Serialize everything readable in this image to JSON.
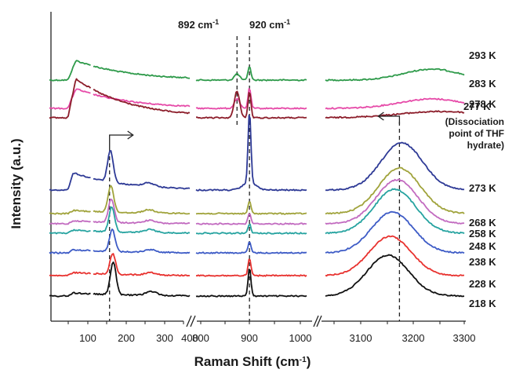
{
  "chart_data": {
    "type": "line",
    "title": "",
    "xlabel": "Raman Shift (cm",
    "xlabel_sup": "-1",
    "xlabel_close": ")",
    "ylabel": "Intensity (a.u.)",
    "broken_x_axis": true,
    "panels": [
      {
        "name": "low",
        "xlim": [
          50,
          400
        ],
        "ticks": [
          100,
          200,
          300
        ],
        "end_tick": "400"
      },
      {
        "name": "mid",
        "xlim": [
          800,
          1050
        ],
        "ticks": [
          800,
          900,
          1000
        ],
        "end_tick": ""
      },
      {
        "name": "high",
        "xlim": [
          3000,
          3300
        ],
        "ticks": [
          3100,
          3200,
          3300
        ],
        "end_tick": ""
      }
    ],
    "tick_labels": {
      "low": [
        "100",
        "200",
        "300"
      ],
      "mid": [
        "800",
        "900",
        "1000"
      ],
      "high": [
        "3100",
        "3200",
        "3300"
      ],
      "low_end": "400"
    },
    "peak_labels": [
      {
        "value": 892,
        "text": "892 cm",
        "sup": "-1"
      },
      {
        "value": 920,
        "text": "920 cm",
        "sup": "-1"
      }
    ],
    "dashed_guides": [
      {
        "panel": "low",
        "x": 200
      },
      {
        "panel": "mid",
        "x": 892
      },
      {
        "panel": "mid",
        "x": 920
      },
      {
        "panel": "high",
        "x": 3160
      }
    ],
    "series": [
      {
        "name": "293 K",
        "color": "#2e9a4a"
      },
      {
        "name": "283 K",
        "color": "#e64aa8"
      },
      {
        "name": "278 K",
        "color": "#8c1d2a"
      },
      {
        "name": "273 K",
        "color": "#2e3a96"
      },
      {
        "name": "268 K",
        "color": "#a0a33b"
      },
      {
        "name": "258 K",
        "color": "#c26bc0"
      },
      {
        "name": "248 K",
        "color": "#26a3a0"
      },
      {
        "name": "238 K",
        "color": "#3d5bc6"
      },
      {
        "name": "228 K",
        "color": "#e8322f"
      },
      {
        "name": "218 K",
        "color": "#111111"
      }
    ],
    "highlight_label": {
      "text": "277 K",
      "color": "#e62020"
    },
    "annotation_lines": [
      "(Dissociation",
      "point of THF",
      "hydrate)"
    ],
    "arrows": [
      {
        "panel": "low",
        "direction": "right"
      },
      {
        "panel": "high",
        "direction": "left"
      }
    ]
  }
}
